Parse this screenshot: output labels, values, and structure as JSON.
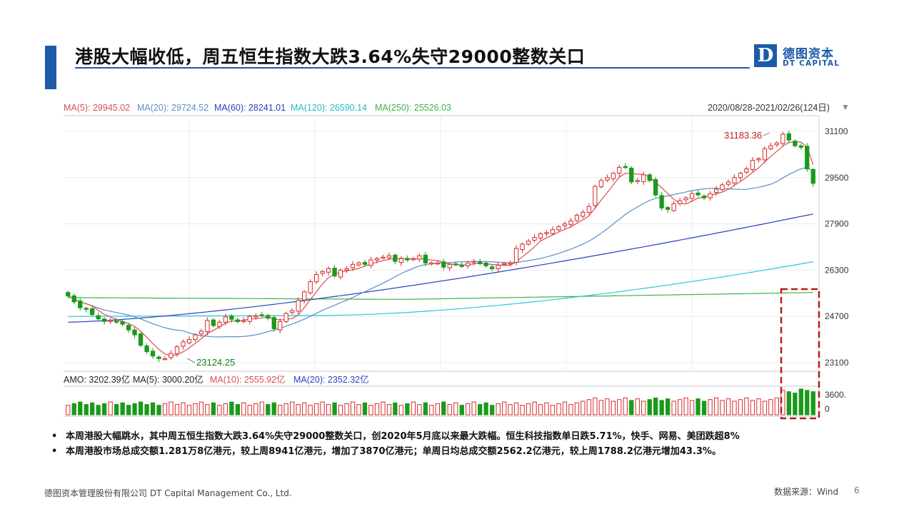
{
  "header": {
    "title": "港股大幅收低，周五恒生指数大跌3.64%失守29000整数关口"
  },
  "logo": {
    "mark": "D",
    "name_cn": "德图资本",
    "name_en": "DT CAPITAL"
  },
  "chart_legend": {
    "ma5": "MA(5): 29945.02",
    "ma20": "MA(20): 29724.52",
    "ma60": "MA(60): 28241.01",
    "ma120": "MA(120): 26590.14",
    "ma250": "MA(250): 25526.03",
    "period": "2020/08/28-2021/02/26(124日)",
    "high_label": "31183.36",
    "low_label": "23124.25",
    "volume_legend": {
      "amo": "AMO: 3202.39亿",
      "ma5": "MA(5): 3000.20亿",
      "ma10": "MA(10): 2555.92亿",
      "ma20": "MA(20): 2352.32亿"
    },
    "y_ticks": [
      "31100",
      "29500",
      "27900",
      "26300",
      "24700",
      "23100"
    ],
    "vol_ticks": [
      "3600.",
      "0"
    ]
  },
  "chart_data": {
    "type": "candlestick",
    "title": "",
    "ylim": [
      23100,
      31100
    ],
    "y_ticks": [
      31100,
      29500,
      27900,
      26300,
      24700,
      23100
    ],
    "colors": {
      "up": "#d62b2b",
      "down": "#1a9a1a",
      "ma5": "#d95050",
      "ma20": "#5a8ec8",
      "ma60": "#2a3fbf",
      "ma120": "#2cc8d8",
      "ma250": "#3fb24a"
    },
    "close": [
      25410,
      25200,
      25000,
      24950,
      24760,
      24610,
      24520,
      24560,
      24500,
      24430,
      24230,
      24060,
      23700,
      23480,
      23330,
      23240,
      23240,
      23420,
      23650,
      23820,
      23900,
      24060,
      24190,
      24560,
      24380,
      24500,
      24680,
      24600,
      24520,
      24560,
      24700,
      24720,
      24750,
      24640,
      24270,
      24520,
      24800,
      24900,
      25250,
      25550,
      25900,
      26150,
      26250,
      26350,
      26100,
      26300,
      26350,
      26500,
      26550,
      26500,
      26650,
      26700,
      26750,
      26800,
      26600,
      26700,
      26650,
      26700,
      26800,
      26550,
      26550,
      26550,
      26400,
      26500,
      26500,
      26450,
      26550,
      26600,
      26530,
      26450,
      26350,
      26470,
      26530,
      26550,
      27050,
      27200,
      27300,
      27430,
      27560,
      27600,
      27700,
      27800,
      27900,
      28000,
      28200,
      28300,
      28500,
      29200,
      29400,
      29500,
      29650,
      29850,
      29850,
      29350,
      29400,
      29600,
      29400,
      28900,
      28450,
      28400,
      28600,
      28700,
      28800,
      28950,
      28900,
      28800,
      28950,
      29100,
      29250,
      29350,
      29500,
      29650,
      29800,
      30100,
      30150,
      30500,
      30600,
      30700,
      31000,
      30800,
      30600,
      30550,
      29800,
      29300
    ],
    "ma5_last": 29945.02,
    "ma20_last": 29724.52,
    "ma60_last": 28241.01,
    "ma120_last": 26590.14,
    "ma250_last": 25526.03,
    "high": 31183.36,
    "low": 23124.25,
    "volume_ticks": [
      3600,
      0
    ]
  },
  "bullets": [
    "本周港股大幅跳水，其中周五恒生指数大跌3.64%失守29000整数关口，创2020年5月底以来最大跌幅。恒生科技指数单日跌5.71%，快手、网易、美团跌超8%",
    "本周港股市场总成交额1.281万8亿港元，较上周8941亿港元，增加了3870亿港元；单周日均总成交额2562.2亿港元，较上周1788.2亿港元增加43.3%。"
  ],
  "footer": {
    "company": "德图资本管理股份有限公司  DT Capital Management Co., Ltd.",
    "source": "数据来源：Wind",
    "page": "6"
  }
}
